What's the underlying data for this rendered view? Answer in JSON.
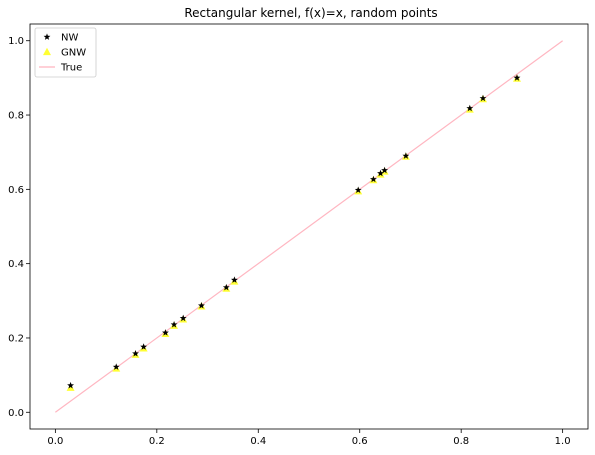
{
  "chart_data": {
    "type": "scatter",
    "title": "Rectangular kernel, f(x)=x, random points",
    "xlabel": "",
    "ylabel": "",
    "xlim": [
      -0.05,
      1.05
    ],
    "ylim": [
      -0.045,
      1.045
    ],
    "xticks": [
      "0.0",
      "0.2",
      "0.4",
      "0.6",
      "0.8",
      "1.0"
    ],
    "yticks": [
      "0.0",
      "0.2",
      "0.4",
      "0.6",
      "0.8",
      "1.0"
    ],
    "grid": false,
    "legend_position": "top-left",
    "series": [
      {
        "name": "NW",
        "kind": "scatter",
        "marker": "star",
        "color": "#000000",
        "x": [
          0.03,
          0.12,
          0.158,
          0.174,
          0.217,
          0.234,
          0.252,
          0.288,
          0.337,
          0.353,
          0.597,
          0.627,
          0.641,
          0.649,
          0.691,
          0.817,
          0.843,
          0.91
        ],
        "y": [
          0.072,
          0.122,
          0.158,
          0.176,
          0.214,
          0.236,
          0.253,
          0.287,
          0.336,
          0.356,
          0.598,
          0.627,
          0.643,
          0.651,
          0.69,
          0.818,
          0.845,
          0.9
        ]
      },
      {
        "name": "GNW",
        "kind": "scatter",
        "marker": "triangle",
        "color": "#ffff33",
        "x": [
          0.03,
          0.12,
          0.158,
          0.174,
          0.217,
          0.234,
          0.252,
          0.288,
          0.337,
          0.353,
          0.597,
          0.627,
          0.641,
          0.649,
          0.691,
          0.817,
          0.843,
          0.91
        ],
        "y": [
          0.066,
          0.118,
          0.155,
          0.172,
          0.211,
          0.233,
          0.25,
          0.285,
          0.333,
          0.352,
          0.595,
          0.625,
          0.64,
          0.648,
          0.688,
          0.815,
          0.843,
          0.898
        ]
      },
      {
        "name": "True",
        "kind": "line",
        "color": "#ffb6c1",
        "x": [
          0.0,
          1.0
        ],
        "y": [
          0.0,
          1.0
        ]
      }
    ]
  }
}
